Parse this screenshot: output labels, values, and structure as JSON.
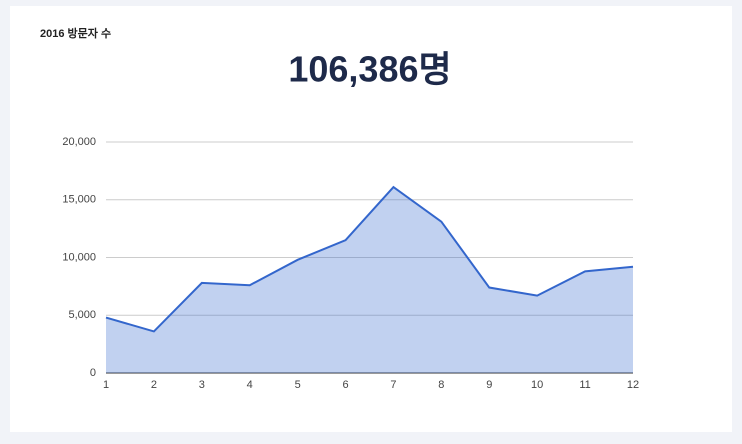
{
  "chart_data": {
    "type": "area",
    "title": "2016 방문자 수",
    "headline": "106,386명",
    "categories": [
      "1",
      "2",
      "3",
      "4",
      "5",
      "6",
      "7",
      "8",
      "9",
      "10",
      "11",
      "12"
    ],
    "series": [
      {
        "color": "#3366cc",
        "values": [
          4800,
          3600,
          7800,
          7600,
          9800,
          11500,
          16100,
          13100,
          7400,
          6700,
          8800,
          9200
        ]
      }
    ],
    "ylim": [
      0,
      20000
    ],
    "yticks": [
      0,
      {
        "value": 5000,
        "label": "5,000"
      },
      {
        "value": 10000,
        "label": "10,000"
      },
      {
        "value": 15000,
        "label": "15,000"
      },
      {
        "value": 20000,
        "label": "20,000"
      }
    ],
    "grid": true
  }
}
